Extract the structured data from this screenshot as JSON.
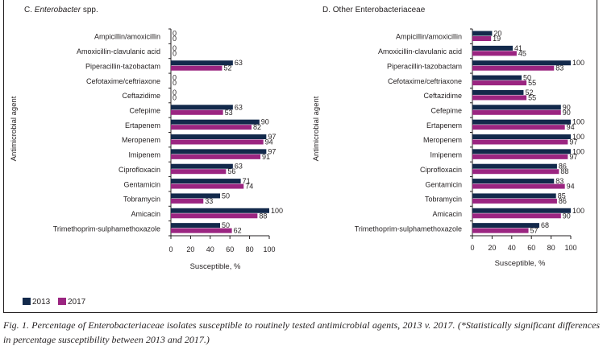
{
  "colors": {
    "y2013": "#13294b",
    "y2017": "#9b2581",
    "axis": "#231f20"
  },
  "legend": [
    {
      "label": "2013",
      "color": "#13294b"
    },
    {
      "label": "2017",
      "color": "#9b2581"
    }
  ],
  "caption": "Fig. 1. Percentage of Enterobacteriaceae isolates susceptible to routinely tested antimicrobial agents, 2013 v. 2017. (*Statistically significant differences in percentage susceptibility between 2013 and 2017.)",
  "chart_data": [
    {
      "type": "bar",
      "orientation": "horizontal",
      "title_prefix": "C.",
      "title_italic": "Enterobacter",
      "title_suffix": "spp.",
      "xlabel": "Susceptible, %",
      "ylabel": "Antimicrobial agent",
      "xlim": [
        0,
        100
      ],
      "xticks": [
        "0",
        "20",
        "40",
        "60",
        "80",
        "100"
      ],
      "grid": false,
      "legend_position": "bottom-left",
      "categories": [
        "Ampicillin/amoxicillin",
        "Amoxicillin-clavulanic acid",
        "Piperacillin-tazobactam",
        "Cefotaxime/ceftriaxone",
        "Ceftazidime",
        "Cefepime",
        "Ertapenem",
        "Meropenem",
        "Imipenem",
        "Ciprofloxacin",
        "Gentamicin",
        "Tobramycin",
        "Amicacin",
        "Trimethoprim-sulphamethoxazole"
      ],
      "series": [
        {
          "name": "2013",
          "values": [
            0,
            0,
            63,
            0,
            0,
            63,
            90,
            97,
            97,
            63,
            71,
            50,
            100,
            50
          ]
        },
        {
          "name": "2017",
          "values": [
            0,
            0,
            52,
            0,
            0,
            53,
            82,
            94,
            91,
            56,
            74,
            33,
            88,
            62
          ]
        }
      ]
    },
    {
      "type": "bar",
      "orientation": "horizontal",
      "title_prefix": "D.",
      "title_italic": "",
      "title_suffix": "Other Enterobacteriaceae",
      "xlabel": "Susceptible, %",
      "ylabel": "Antimicrobial agent",
      "xlim": [
        0,
        100
      ],
      "xticks": [
        "0",
        "20",
        "40",
        "60",
        "80",
        "100"
      ],
      "grid": false,
      "categories": [
        "Ampicillin/amoxicillin",
        "Amoxicillin-clavulanic acid",
        "Piperacillin-tazobactam",
        "Cefotaxime/ceftriaxone",
        "Ceftazidime",
        "Cefepime",
        "Ertapenem",
        "Meropenem",
        "Imipenem",
        "Ciprofloxacin",
        "Gentamicin",
        "Tobramycin",
        "Amicacin",
        "Trimethoprim-sulphamethoxazole"
      ],
      "series": [
        {
          "name": "2013",
          "values": [
            20,
            41,
            100,
            50,
            52,
            90,
            100,
            100,
            100,
            86,
            83,
            85,
            100,
            68
          ]
        },
        {
          "name": "2017",
          "values": [
            19,
            45,
            83,
            55,
            55,
            90,
            94,
            97,
            97,
            88,
            94,
            86,
            90,
            57
          ]
        }
      ]
    }
  ]
}
